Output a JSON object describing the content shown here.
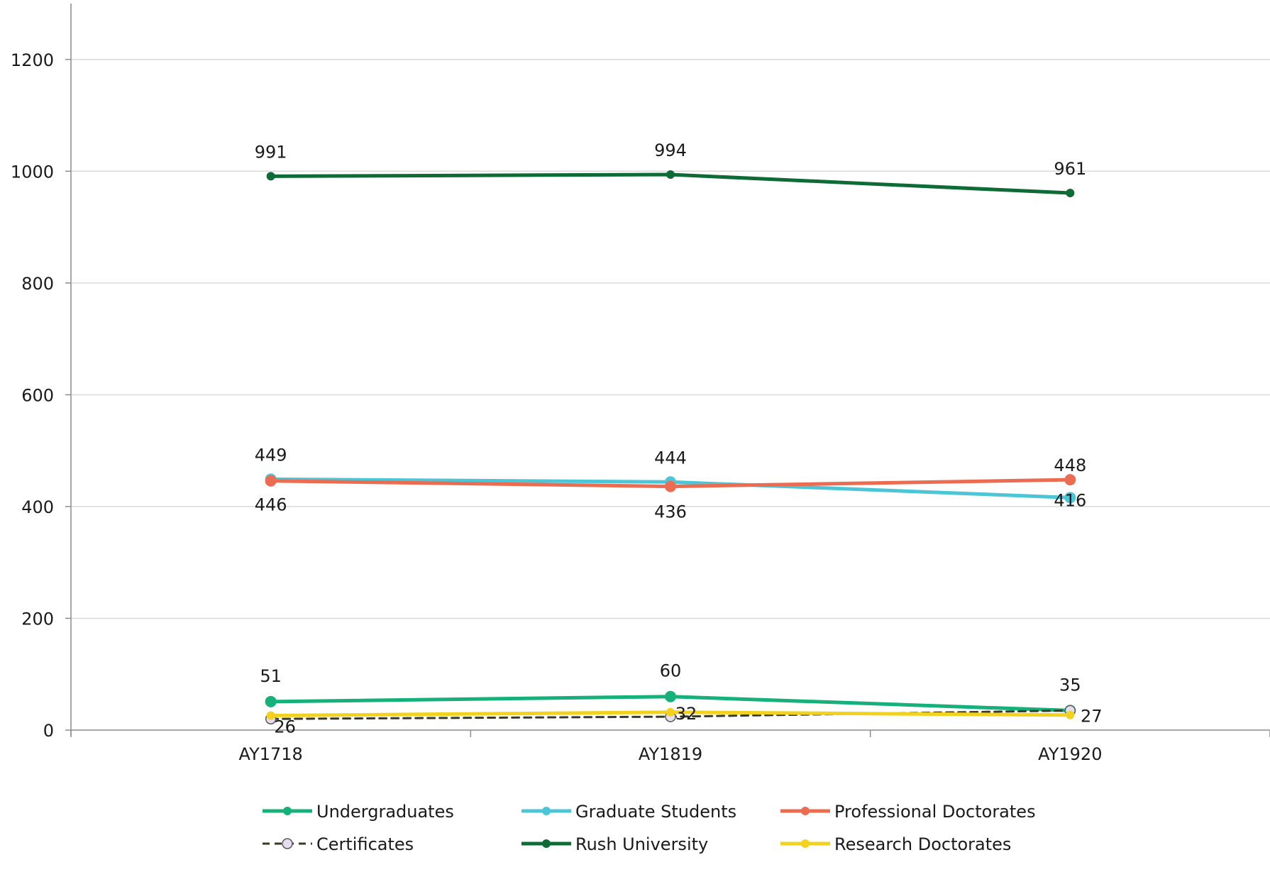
{
  "chart_data": {
    "type": "line",
    "title": "",
    "xlabel": "",
    "ylabel": "",
    "categories": [
      "AY1718",
      "AY1819",
      "AY1920"
    ],
    "ylim": [
      0,
      1300
    ],
    "yticks": [
      0,
      200,
      400,
      600,
      800,
      1000,
      1200
    ],
    "grid": true,
    "legend_position": "bottom",
    "series": [
      {
        "name": "Undergraduates",
        "values": [
          51,
          60,
          35
        ],
        "color": "#16b07a",
        "dashed": false,
        "marker": "filled",
        "labels": [
          "51",
          "60",
          "35"
        ]
      },
      {
        "name": "Graduate Students",
        "values": [
          449,
          444,
          416
        ],
        "color": "#4cc6d6",
        "dashed": false,
        "marker": "filled",
        "labels": [
          "449",
          "444",
          "416"
        ]
      },
      {
        "name": "Professional Doctorates",
        "values": [
          446,
          436,
          448
        ],
        "color": "#ec6c52",
        "dashed": false,
        "marker": "filled",
        "labels": [
          "446",
          "436",
          "448"
        ]
      },
      {
        "name": "Certificates",
        "values": [
          20,
          24,
          35
        ],
        "color": "#3a3a2a",
        "dashed": true,
        "marker": "hollow",
        "labels": []
      },
      {
        "name": "Rush University",
        "values": [
          991,
          994,
          961
        ],
        "color": "#0d6b36",
        "dashed": false,
        "marker": "filled",
        "labels": [
          "991",
          "994",
          "961"
        ]
      },
      {
        "name": "Research Doctorates",
        "values": [
          26,
          32,
          27
        ],
        "color": "#f2d21f",
        "dashed": false,
        "marker": "filled",
        "labels": [
          "26",
          "32",
          "27"
        ]
      }
    ]
  }
}
